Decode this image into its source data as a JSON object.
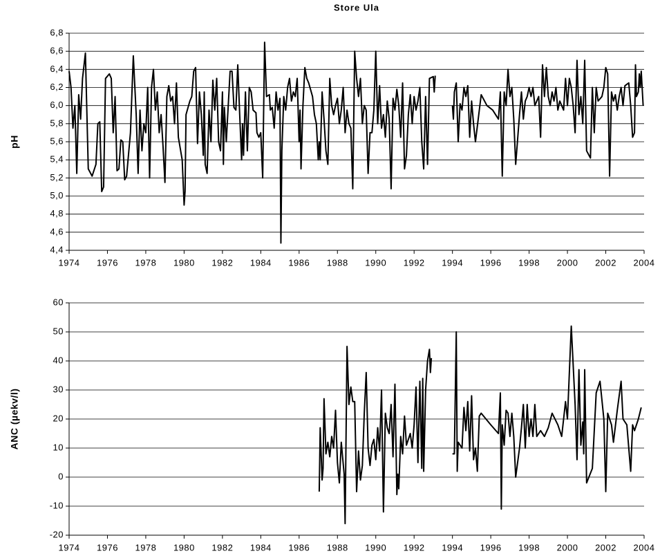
{
  "chart_data": [
    {
      "type": "line",
      "title": "Store Ula",
      "y_label": "pH",
      "color": "#000000",
      "grid": true,
      "xlim": [
        1974,
        2004
      ],
      "xticks": [
        1974,
        1976,
        1978,
        1980,
        1982,
        1984,
        1986,
        1988,
        1990,
        1992,
        1994,
        1996,
        1998,
        2000,
        2002,
        2004
      ],
      "ylim": [
        4.4,
        6.8
      ],
      "yticks": [
        {
          "value": 4.4,
          "label": "4,4"
        },
        {
          "value": 4.6,
          "label": "4,6"
        },
        {
          "value": 4.8,
          "label": "4,8"
        },
        {
          "value": 5.0,
          "label": "5,0"
        },
        {
          "value": 5.2,
          "label": "5,2"
        },
        {
          "value": 5.4,
          "label": "5,4"
        },
        {
          "value": 5.6,
          "label": "5,6"
        },
        {
          "value": 5.8,
          "label": "5,8"
        },
        {
          "value": 6.0,
          "label": "6,0"
        },
        {
          "value": 6.2,
          "label": "6,2"
        },
        {
          "value": 6.4,
          "label": "6,4"
        },
        {
          "value": 6.6,
          "label": "6,6"
        },
        {
          "value": 6.8,
          "label": "6,8"
        }
      ],
      "x": [
        1974.0,
        1974.1,
        1974.2,
        1974.3,
        1974.4,
        1974.5,
        1974.6,
        1974.7,
        1974.85,
        1975.0,
        1975.2,
        1975.4,
        1975.5,
        1975.6,
        1975.7,
        1975.8,
        1975.9,
        1976.1,
        1976.2,
        1976.3,
        1976.4,
        1976.5,
        1976.6,
        1976.7,
        1976.8,
        1976.9,
        1977.0,
        1977.2,
        1977.35,
        1977.5,
        1977.6,
        1977.7,
        1977.8,
        1977.9,
        1978.0,
        1978.1,
        1978.2,
        1978.3,
        1978.4,
        1978.5,
        1978.6,
        1978.7,
        1978.8,
        1978.9,
        1979.0,
        1979.1,
        1979.2,
        1979.3,
        1979.4,
        1979.5,
        1979.6,
        1979.7,
        1979.9,
        1980.0,
        1980.05,
        1980.1,
        1980.3,
        1980.4,
        1980.5,
        1980.6,
        1980.7,
        1980.8,
        1980.9,
        1981.0,
        1981.05,
        1981.1,
        1981.2,
        1981.3,
        1981.4,
        1981.5,
        1981.6,
        1981.7,
        1981.8,
        1981.9,
        1982.0,
        1982.05,
        1982.1,
        1982.2,
        1982.4,
        1982.5,
        1982.6,
        1982.7,
        1982.8,
        1982.9,
        1983.0,
        1983.05,
        1983.1,
        1983.2,
        1983.3,
        1983.4,
        1983.5,
        1983.6,
        1983.75,
        1983.8,
        1983.9,
        1984.0,
        1984.1,
        1984.2,
        1984.3,
        1984.45,
        1984.5,
        1984.6,
        1984.7,
        1984.8,
        1984.9,
        1985.0,
        1985.05,
        1985.1,
        1985.2,
        1985.3,
        1985.4,
        1985.5,
        1985.6,
        1985.7,
        1985.8,
        1985.9,
        1986.0,
        1986.05,
        1986.1,
        1986.2,
        1986.3,
        1986.4,
        1986.5,
        1986.7,
        1986.8,
        1986.9,
        1987.0,
        1987.05,
        1987.1,
        1987.2,
        1987.3,
        1987.4,
        1987.5,
        1987.6,
        1987.7,
        1987.8,
        1987.9,
        1988.0,
        1988.1,
        1988.2,
        1988.3,
        1988.4,
        1988.5,
        1988.6,
        1988.7,
        1988.8,
        1988.9,
        1989.0,
        1989.1,
        1989.2,
        1989.3,
        1989.4,
        1989.5,
        1989.6,
        1989.7,
        1989.8,
        1989.9,
        1990.0,
        1990.1,
        1990.2,
        1990.3,
        1990.4,
        1990.5,
        1990.6,
        1990.7,
        1990.8,
        1990.9,
        1991.0,
        1991.1,
        1991.2,
        1991.3,
        1991.4,
        1991.5,
        1991.6,
        1991.7,
        1991.8,
        1991.9,
        1992.0,
        1992.1,
        1992.2,
        1992.3,
        1992.4,
        1992.5,
        1992.6,
        1992.7,
        1992.8,
        1993.0,
        1993.05,
        1993.1,
        1993.5,
        1994.0,
        1994.05,
        1994.1,
        1994.2,
        1994.3,
        1994.4,
        1994.5,
        1994.6,
        1994.7,
        1994.8,
        1994.9,
        1995.0,
        1995.1,
        1995.2,
        1995.5,
        1995.8,
        1996.1,
        1996.4,
        1996.5,
        1996.6,
        1996.7,
        1996.8,
        1996.9,
        1997.0,
        1997.1,
        1997.2,
        1997.3,
        1997.5,
        1997.6,
        1997.7,
        1997.8,
        1997.9,
        1998.0,
        1998.1,
        1998.2,
        1998.3,
        1998.5,
        1998.6,
        1998.7,
        1998.8,
        1998.9,
        1999.0,
        1999.1,
        1999.2,
        1999.3,
        1999.4,
        1999.5,
        1999.6,
        1999.7,
        1999.8,
        1999.9,
        2000.0,
        2000.1,
        2000.2,
        2000.3,
        2000.4,
        2000.5,
        2000.6,
        2000.7,
        2000.8,
        2000.9,
        2001.0,
        2001.2,
        2001.3,
        2001.4,
        2001.5,
        2001.6,
        2001.8,
        2001.9,
        2002.0,
        2002.1,
        2002.2,
        2002.3,
        2002.4,
        2002.5,
        2002.6,
        2002.7,
        2002.8,
        2002.9,
        2003.0,
        2003.2,
        2003.3,
        2003.4,
        2003.5,
        2003.55,
        2003.6,
        2003.7,
        2003.75,
        2003.8,
        2003.85,
        2003.95
      ],
      "values": [
        6.38,
        6.2,
        5.75,
        6.0,
        5.25,
        6.12,
        5.85,
        6.3,
        6.58,
        5.3,
        5.22,
        5.35,
        5.8,
        5.82,
        5.05,
        5.1,
        6.3,
        6.35,
        6.3,
        5.7,
        6.1,
        5.28,
        5.3,
        5.62,
        5.6,
        5.18,
        5.22,
        5.7,
        6.55,
        5.9,
        5.25,
        5.95,
        5.5,
        5.8,
        5.7,
        6.2,
        5.2,
        6.2,
        6.4,
        5.95,
        6.15,
        5.7,
        5.9,
        5.55,
        5.15,
        6.1,
        6.22,
        6.05,
        6.1,
        5.8,
        6.25,
        5.65,
        5.4,
        4.9,
        5.05,
        5.9,
        6.05,
        6.1,
        6.38,
        6.42,
        5.58,
        6.15,
        5.9,
        5.45,
        6.15,
        5.35,
        5.25,
        5.95,
        5.6,
        6.28,
        5.95,
        6.3,
        5.6,
        5.5,
        6.15,
        5.35,
        5.98,
        5.6,
        6.38,
        6.38,
        5.98,
        5.95,
        6.45,
        5.9,
        5.4,
        5.8,
        5.45,
        6.15,
        5.5,
        6.2,
        6.15,
        5.95,
        5.92,
        5.7,
        5.65,
        5.7,
        5.2,
        6.7,
        6.1,
        6.12,
        5.95,
        5.98,
        5.75,
        6.15,
        5.95,
        6.08,
        4.48,
        5.5,
        6.1,
        5.95,
        6.2,
        6.3,
        6.05,
        6.15,
        6.1,
        6.3,
        5.6,
        5.95,
        5.3,
        6.0,
        6.42,
        6.3,
        6.25,
        6.1,
        5.9,
        5.8,
        5.4,
        5.6,
        5.4,
        6.15,
        5.85,
        5.5,
        5.35,
        6.3,
        6.0,
        5.9,
        6.0,
        6.08,
        5.8,
        5.95,
        6.2,
        5.7,
        5.95,
        5.8,
        5.75,
        5.08,
        6.6,
        6.3,
        6.1,
        6.3,
        5.8,
        6.0,
        5.95,
        5.25,
        5.7,
        5.7,
        5.95,
        6.6,
        5.8,
        6.22,
        5.75,
        5.9,
        5.65,
        6.05,
        5.85,
        5.08,
        6.08,
        5.95,
        6.18,
        6.0,
        5.65,
        6.25,
        5.3,
        5.45,
        5.9,
        6.12,
        5.8,
        6.1,
        5.95,
        6.05,
        6.2,
        5.6,
        5.3,
        6.1,
        5.35,
        6.3,
        6.32,
        6.15,
        6.33,
        null,
        6.0,
        5.85,
        6.15,
        6.25,
        5.6,
        6.02,
        5.95,
        6.2,
        6.1,
        6.22,
        5.65,
        6.05,
        5.8,
        5.6,
        6.12,
        6.0,
        5.95,
        5.85,
        6.15,
        5.22,
        6.15,
        6.0,
        6.4,
        6.1,
        6.2,
        5.85,
        5.35,
        5.9,
        6.15,
        5.85,
        6.05,
        6.1,
        6.2,
        6.1,
        6.2,
        6.0,
        6.1,
        5.65,
        6.45,
        6.1,
        6.42,
        6.1,
        6.0,
        6.15,
        6.05,
        6.2,
        5.95,
        6.05,
        6.0,
        5.95,
        6.3,
        6.0,
        6.3,
        6.2,
        6.0,
        5.7,
        6.5,
        5.9,
        6.1,
        5.8,
        6.5,
        5.5,
        5.42,
        6.2,
        5.7,
        6.2,
        6.05,
        6.1,
        6.2,
        6.42,
        6.35,
        5.22,
        6.15,
        6.05,
        6.12,
        5.95,
        6.1,
        6.2,
        6.0,
        6.22,
        6.25,
        6.0,
        5.65,
        5.7,
        6.45,
        6.1,
        6.15,
        6.35,
        6.2,
        6.38,
        6.0
      ]
    },
    {
      "type": "line",
      "y_label": "ANC (µekv/l)",
      "color": "#000000",
      "grid": true,
      "xlim": [
        1974,
        2004
      ],
      "xticks": [
        1974,
        1976,
        1978,
        1980,
        1982,
        1984,
        1986,
        1988,
        1990,
        1992,
        1994,
        1996,
        1998,
        2000,
        2002,
        2004
      ],
      "ylim": [
        -20,
        60
      ],
      "yticks": [
        -20,
        -10,
        0,
        10,
        20,
        30,
        40,
        50,
        60
      ],
      "x": [
        1987.05,
        1987.1,
        1987.2,
        1987.25,
        1987.3,
        1987.4,
        1987.5,
        1987.6,
        1987.7,
        1987.8,
        1987.9,
        1988.0,
        1988.1,
        1988.2,
        1988.35,
        1988.4,
        1988.5,
        1988.6,
        1988.7,
        1988.8,
        1988.9,
        1989.0,
        1989.1,
        1989.2,
        1989.3,
        1989.4,
        1989.5,
        1989.6,
        1989.7,
        1989.8,
        1989.9,
        1990.0,
        1990.1,
        1990.2,
        1990.3,
        1990.4,
        1990.5,
        1990.6,
        1990.7,
        1990.8,
        1990.9,
        1991.0,
        1991.1,
        1991.15,
        1991.2,
        1991.3,
        1991.4,
        1991.5,
        1991.6,
        1991.7,
        1991.8,
        1991.9,
        1992.0,
        1992.1,
        1992.2,
        1992.3,
        1992.4,
        1992.45,
        1992.5,
        1992.6,
        1992.7,
        1992.8,
        1992.85,
        1992.9,
        1993.5,
        1994.0,
        1994.1,
        1994.2,
        1994.25,
        1994.3,
        1994.4,
        1994.5,
        1994.6,
        1994.7,
        1994.8,
        1994.9,
        1995.0,
        1995.1,
        1995.2,
        1995.3,
        1995.4,
        1995.5,
        1996.0,
        1996.4,
        1996.5,
        1996.55,
        1996.6,
        1996.7,
        1996.8,
        1996.9,
        1997.0,
        1997.1,
        1997.2,
        1997.3,
        1997.5,
        1997.6,
        1997.7,
        1997.8,
        1997.9,
        1998.0,
        1998.1,
        1998.2,
        1998.3,
        1998.4,
        1998.6,
        1998.8,
        1999.0,
        1999.2,
        1999.5,
        1999.7,
        1999.9,
        2000.0,
        2000.2,
        2000.4,
        2000.5,
        2000.6,
        2000.7,
        2000.8,
        2000.85,
        2000.9,
        2001.0,
        2001.3,
        2001.5,
        2001.7,
        2001.9,
        2002.0,
        2002.1,
        2002.3,
        2002.4,
        2002.6,
        2002.8,
        2002.9,
        2003.1,
        2003.2,
        2003.3,
        2003.4,
        2003.5,
        2003.7,
        2003.85
      ],
      "values": [
        -5,
        17,
        -1,
        3,
        27,
        8,
        12,
        7,
        14,
        10,
        23,
        5,
        -2,
        12,
        1,
        -16,
        45,
        25,
        31,
        26,
        26,
        -5,
        9,
        -1,
        4,
        22,
        36,
        10,
        4,
        11,
        13,
        6,
        17,
        9,
        30,
        -12,
        22,
        17,
        15,
        25,
        7,
        32,
        -6,
        1,
        -4,
        14,
        8,
        21,
        11,
        13,
        15,
        10,
        18,
        31,
        5,
        33,
        3,
        34,
        2,
        30,
        40,
        44,
        36,
        41,
        null,
        8,
        8,
        50,
        2,
        12,
        11,
        10,
        24,
        16,
        26,
        9,
        28,
        6,
        10,
        2,
        21,
        22,
        18,
        15,
        29,
        -11,
        18,
        11,
        23,
        22,
        14,
        22,
        14,
        0,
        10,
        17,
        25,
        10,
        25,
        14,
        20,
        14,
        25,
        14,
        16,
        14,
        17,
        22,
        18,
        14,
        26,
        20,
        52,
        25,
        6,
        37,
        11,
        19,
        8,
        37,
        -2,
        3,
        29,
        33,
        20,
        -5,
        22,
        18,
        12,
        23,
        33,
        20,
        18,
        10,
        2,
        18,
        16,
        20,
        24
      ]
    }
  ]
}
